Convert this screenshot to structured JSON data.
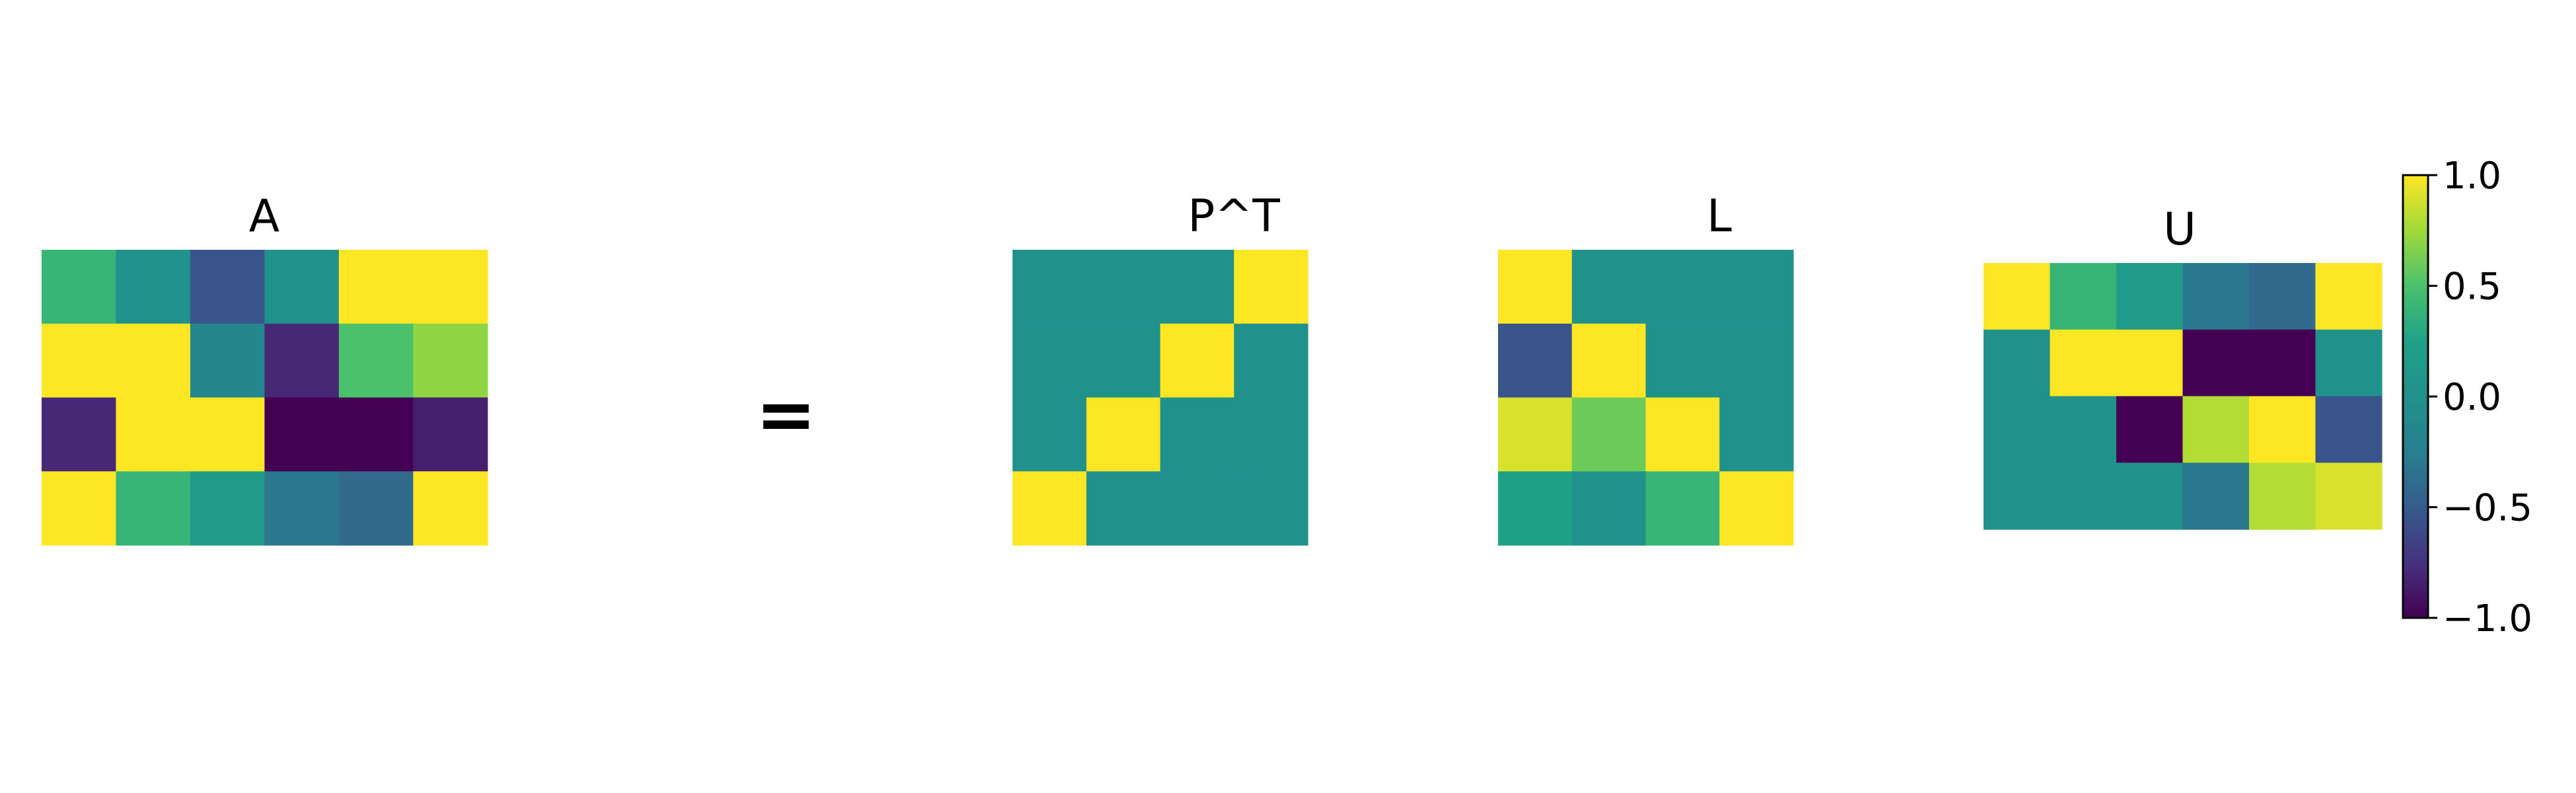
{
  "equation_symbol": "=",
  "chart_data": {
    "type": "heatmap",
    "colormap": "viridis",
    "vmin": -1.0,
    "vmax": 1.0,
    "matrices": [
      {
        "key": "A",
        "title": "A",
        "values": [
          [
            0.4,
            0.0,
            -0.55,
            0.0,
            1.0,
            1.0
          ],
          [
            1.0,
            1.0,
            -0.15,
            -0.8,
            0.5,
            0.7
          ],
          [
            -0.8,
            1.0,
            1.0,
            -1.0,
            -1.0,
            -0.85
          ],
          [
            1.0,
            0.4,
            0.15,
            -0.3,
            -0.4,
            1.0
          ]
        ]
      },
      {
        "key": "PT",
        "title": "P^T",
        "values": [
          [
            0,
            0,
            0,
            1
          ],
          [
            0,
            0,
            1,
            0
          ],
          [
            0,
            1,
            0,
            0
          ],
          [
            1,
            0,
            0,
            0
          ]
        ]
      },
      {
        "key": "L",
        "title": "L",
        "values": [
          [
            1.0,
            0.0,
            0.0,
            0.0
          ],
          [
            -0.55,
            1.0,
            0.0,
            0.0
          ],
          [
            0.9,
            0.6,
            1.0,
            0.0
          ],
          [
            0.25,
            0.0,
            0.4,
            1.0
          ]
        ]
      },
      {
        "key": "U",
        "title": "U",
        "values": [
          [
            1.0,
            0.4,
            0.15,
            -0.3,
            -0.4,
            1.0
          ],
          [
            0.0,
            1.0,
            1.0,
            -1.0,
            -1.0,
            0.0
          ],
          [
            0.0,
            0.0,
            -1.0,
            0.8,
            1.0,
            -0.55
          ],
          [
            0.0,
            0.0,
            0.0,
            -0.3,
            0.8,
            0.9
          ]
        ]
      }
    ],
    "colorbar": {
      "ticks": [
        1.0,
        0.5,
        0.0,
        -0.5,
        -1.0
      ],
      "tick_labels": [
        "1.0",
        "0.5",
        "0.0",
        "−0.5",
        "−1.0"
      ]
    }
  }
}
